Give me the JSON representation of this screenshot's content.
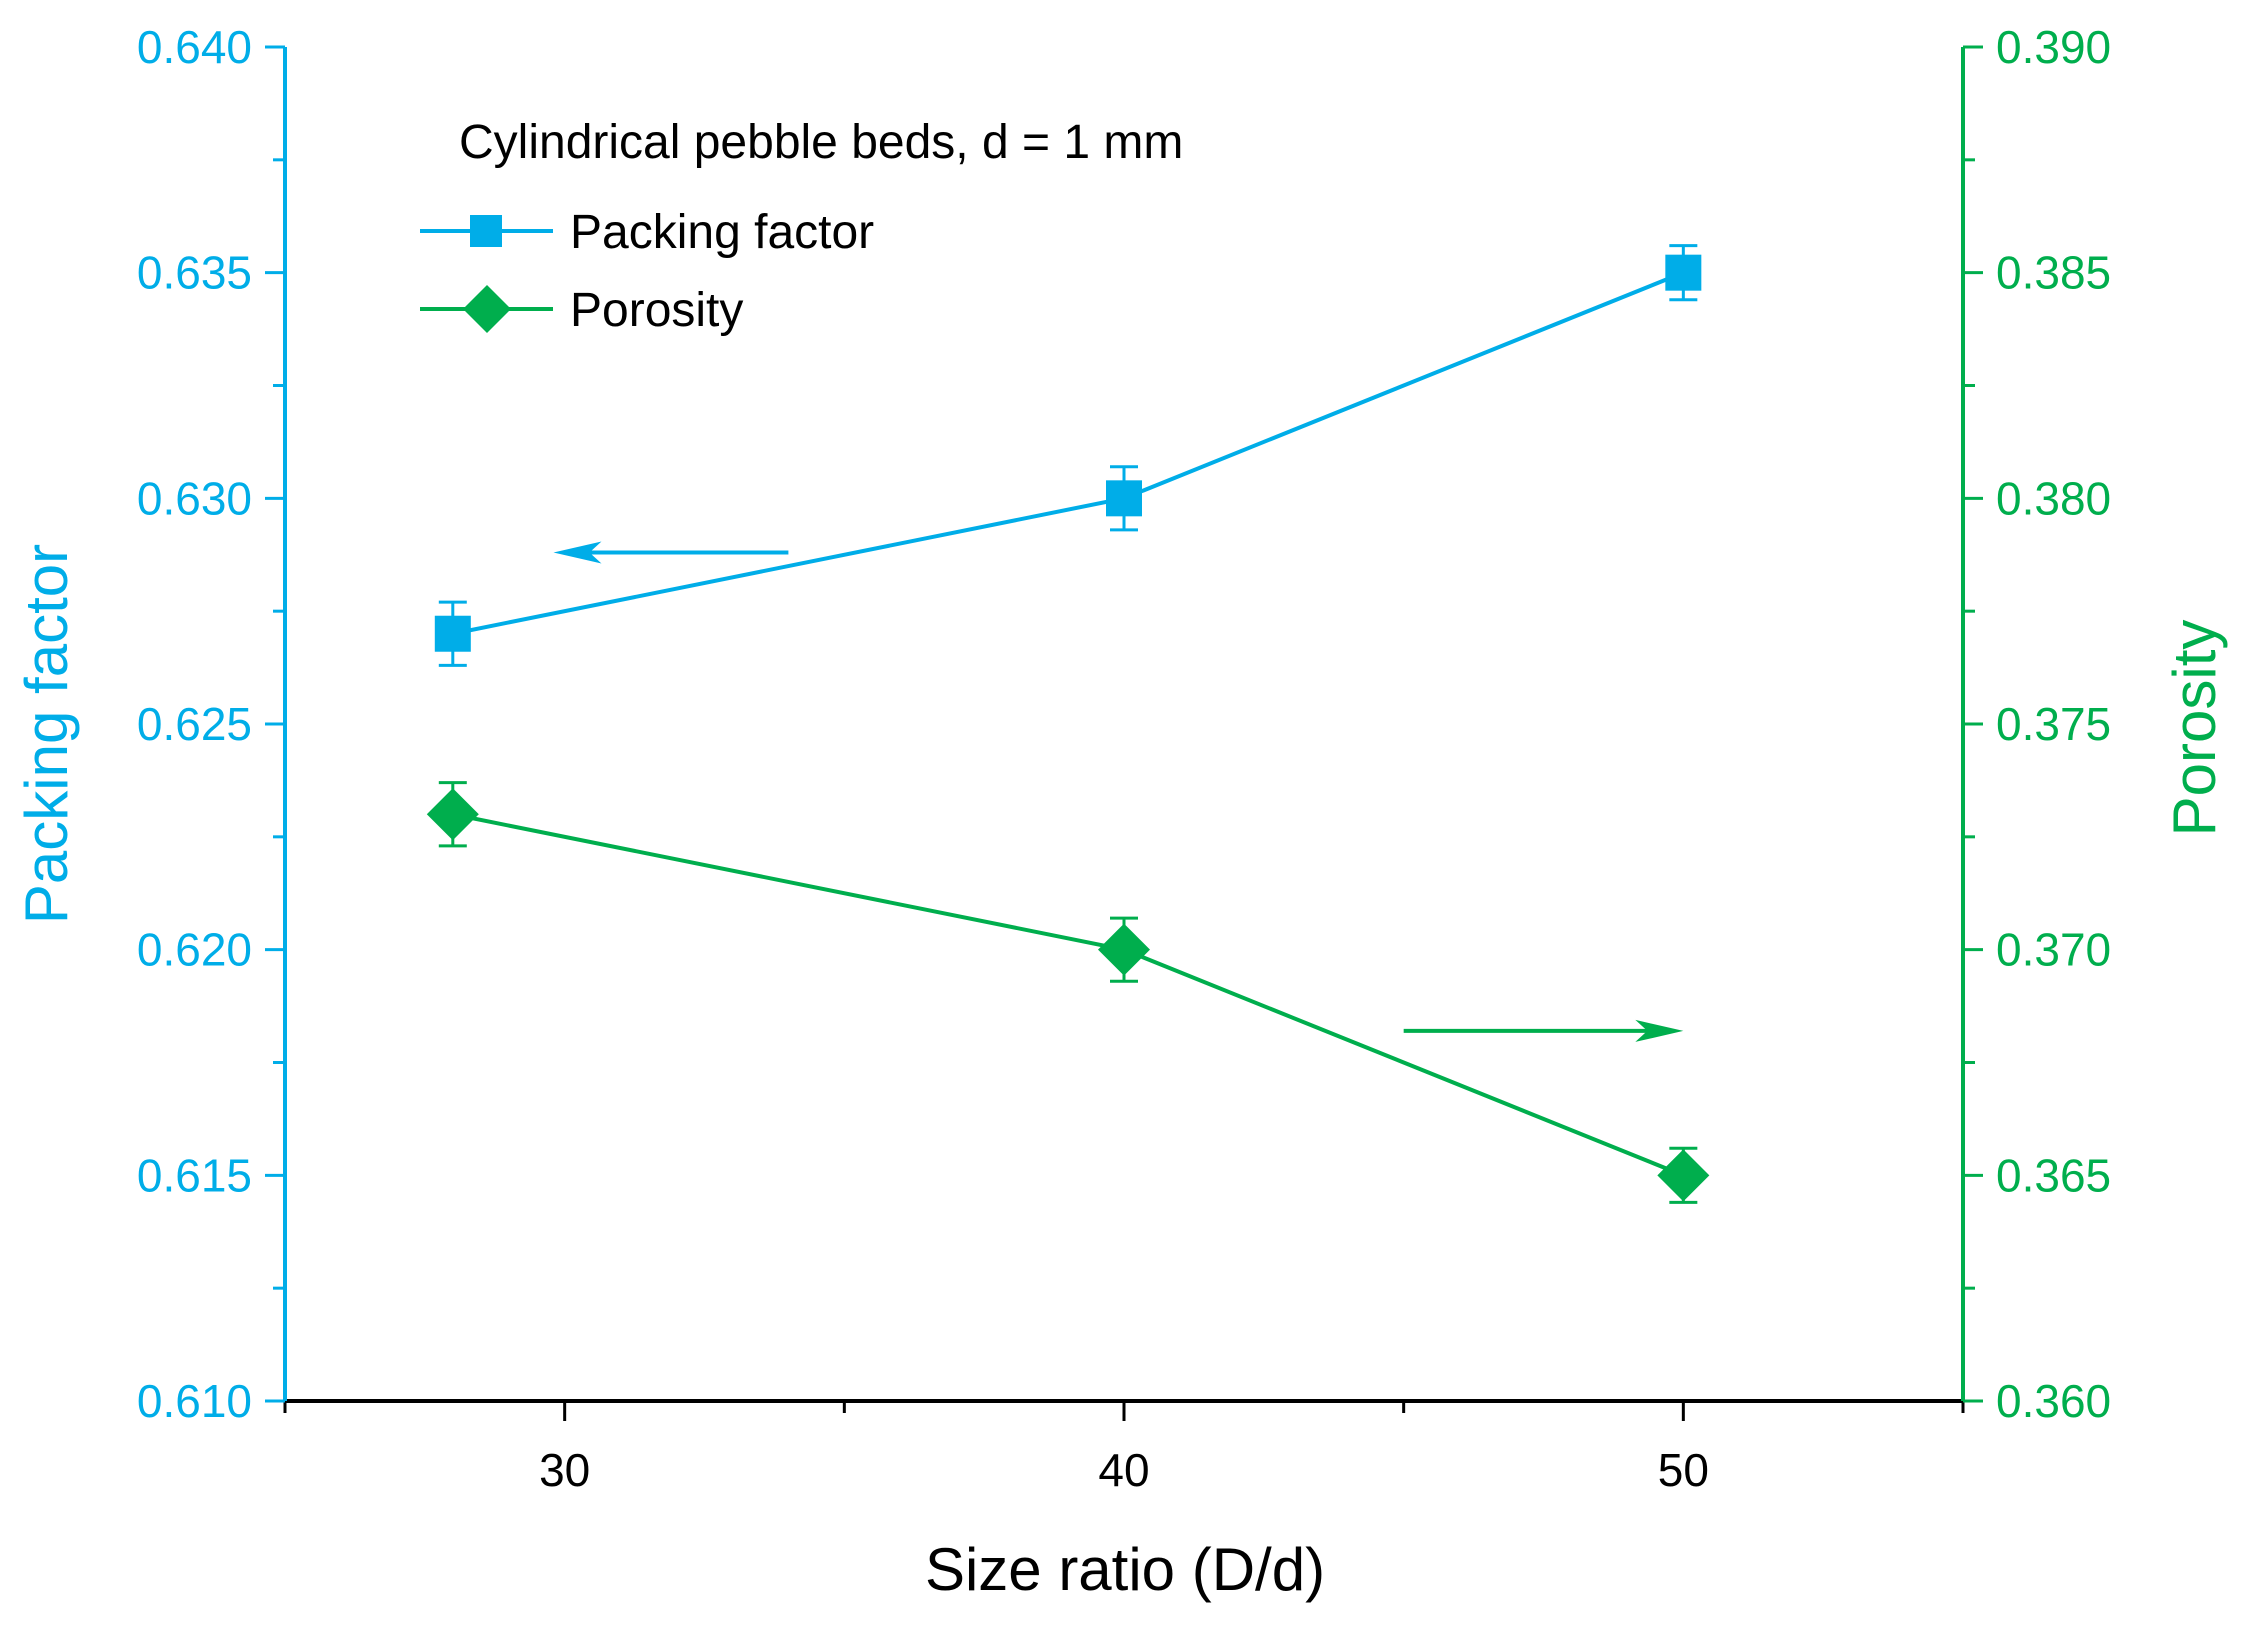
{
  "colors": {
    "packing": "#00ADE8",
    "porosity": "#00AE4D",
    "axis": "#000000",
    "background": "#ffffff"
  },
  "chart_data": {
    "type": "line",
    "title": "",
    "annotation": "Cylindrical pebble beds, d = 1 mm",
    "xlabel": "Size ratio (D/d)",
    "ylabel_left": "Packing factor",
    "ylabel_right": "Porosity",
    "xlim": [
      25,
      55
    ],
    "ylim_left": [
      0.61,
      0.64
    ],
    "ylim_right": [
      0.36,
      0.39
    ],
    "x_ticks": [
      30,
      40,
      50
    ],
    "x_tick_labels": [
      "30",
      "40",
      "50"
    ],
    "y_left_ticks": [
      0.61,
      0.615,
      0.62,
      0.625,
      0.63,
      0.635,
      0.64
    ],
    "y_left_tick_labels": [
      "0.610",
      "0.615",
      "0.620",
      "0.625",
      "0.630",
      "0.635",
      "0.640"
    ],
    "y_right_ticks": [
      0.36,
      0.365,
      0.37,
      0.375,
      0.38,
      0.385,
      0.39
    ],
    "y_right_tick_labels": [
      "0.360",
      "0.365",
      "0.370",
      "0.375",
      "0.380",
      "0.385",
      "0.390"
    ],
    "legend_position": "top-left",
    "series": [
      {
        "name": "Packing factor",
        "axis": "left",
        "marker": "square",
        "x": [
          28,
          40,
          50
        ],
        "y": [
          0.627,
          0.63,
          0.635
        ],
        "error": [
          0.0007,
          0.0007,
          0.0006
        ]
      },
      {
        "name": "Porosity",
        "axis": "right",
        "marker": "diamond",
        "x": [
          28,
          40,
          50
        ],
        "y": [
          0.373,
          0.37,
          0.365
        ],
        "error": [
          0.0007,
          0.0007,
          0.0006
        ]
      }
    ],
    "arrows": [
      {
        "series": "Packing factor",
        "direction": "left",
        "x_from": 34,
        "x_to": 29.8,
        "y": 0.6288
      },
      {
        "series": "Porosity",
        "direction": "right",
        "x_from": 45,
        "x_to": 50,
        "y": 0.3682
      }
    ]
  }
}
